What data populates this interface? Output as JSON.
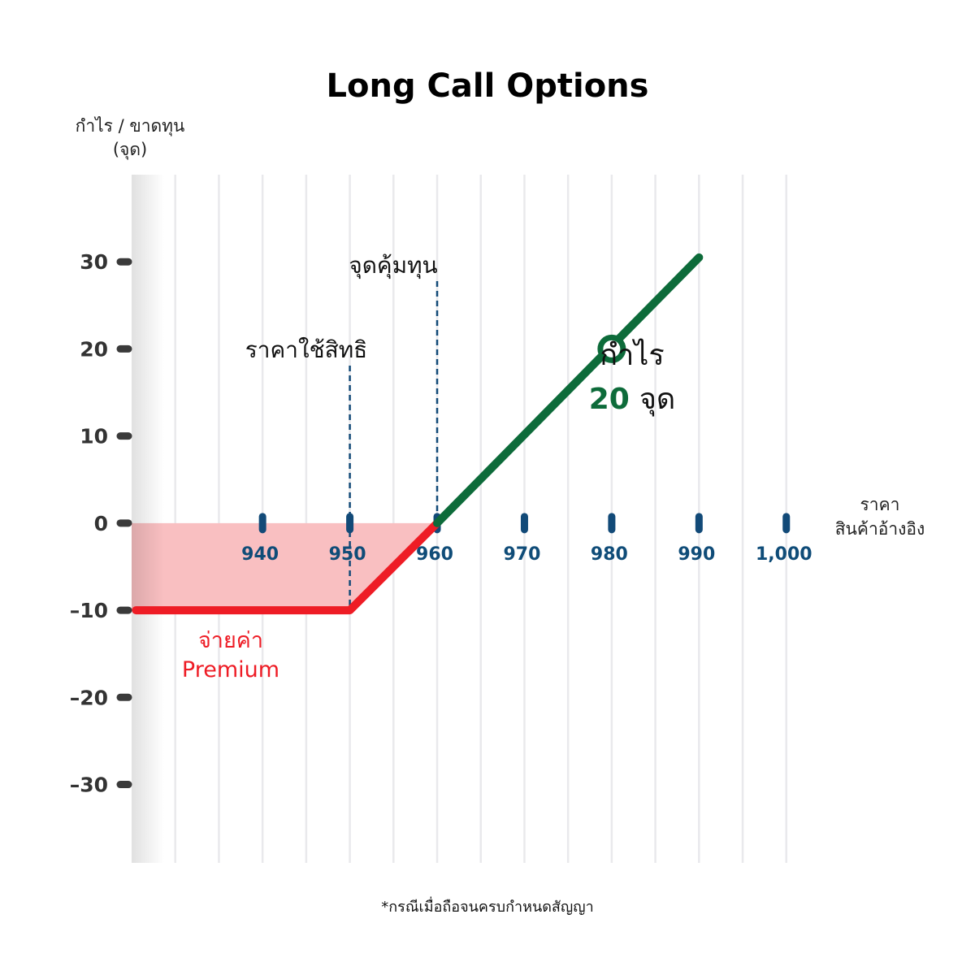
{
  "colors": {
    "x_axis": "#124a78",
    "profit_line": "#0d6b3a",
    "loss_line": "#ee1c25",
    "loss_fill": "#f9bfc1",
    "tick_text": "#0f4c78",
    "profit_number": "#0d6b3a",
    "premium_text": "#ee1c25"
  },
  "chart_data": {
    "type": "line",
    "title": "Long Call Options",
    "ylabel_line1": "กำไร / ขาดทุน",
    "ylabel_line2": "(จุด)",
    "xlabel_line1": "ราคา",
    "xlabel_line2": "สินค้าอ้างอิง",
    "x_ticks": [
      {
        "value": 940,
        "label": "940"
      },
      {
        "value": 950,
        "label": "950"
      },
      {
        "value": 960,
        "label": "960"
      },
      {
        "value": 970,
        "label": "970"
      },
      {
        "value": 980,
        "label": "980"
      },
      {
        "value": 990,
        "label": "990"
      },
      {
        "value": 1000,
        "label": "1,000"
      }
    ],
    "y_ticks": [
      {
        "value": 30,
        "label": "30"
      },
      {
        "value": 20,
        "label": "20"
      },
      {
        "value": 10,
        "label": "10"
      },
      {
        "value": 0,
        "label": "0"
      },
      {
        "value": -10,
        "label": "–10"
      },
      {
        "value": -20,
        "label": "–20"
      },
      {
        "value": -30,
        "label": "–30"
      }
    ],
    "xlim": [
      925,
      1003
    ],
    "ylim": [
      -39,
      40
    ],
    "grid": true,
    "series": [
      {
        "key": "loss",
        "x": [
          925.5,
          950,
          960
        ],
        "y": [
          -10,
          -10,
          0
        ]
      },
      {
        "key": "profit",
        "x": [
          960,
          990
        ],
        "y": [
          0,
          30.5
        ]
      }
    ],
    "strike": {
      "x": 950,
      "label": "ราคาใช้สิทธิ"
    },
    "breakeven": {
      "x": 960,
      "label": "จุดคุ้มทุน"
    },
    "highlight_point": {
      "x": 980,
      "y": 20
    },
    "profit_annotation": {
      "word": "กำไร",
      "number": "20",
      "unit": "จุด"
    },
    "premium_annotation": {
      "line1": "จ่ายค่า",
      "line2": "Premium"
    },
    "footnote": "*กรณีเมื่อถือจนครบกำหนดสัญญา"
  }
}
